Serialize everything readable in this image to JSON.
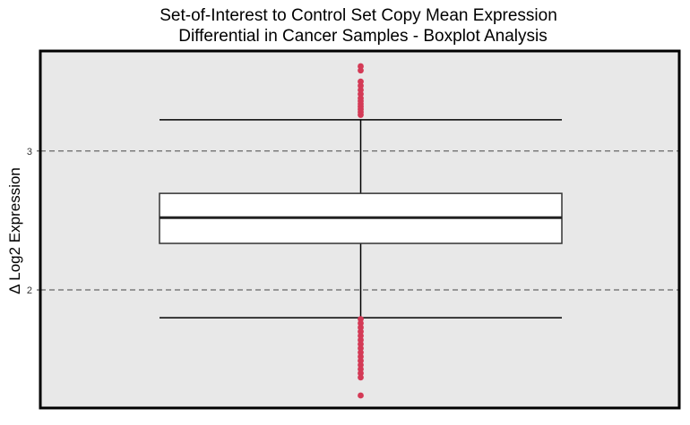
{
  "chart_data": {
    "type": "boxplot",
    "title_lines": [
      "Set-of-Interest to Control Set Copy Mean Expression",
      "Differential in Cancer Samples - Boxplot Analysis"
    ],
    "xlabel": "",
    "ylabel": "Δ Log2 Expression",
    "ylim": [
      1.15,
      3.72
    ],
    "yticks": [
      2,
      3
    ],
    "ytick_labels": [
      "2",
      "3"
    ],
    "grid": "dashed horizontal lines at y ticks",
    "box": {
      "whisker_low": 1.8,
      "q1": 2.335,
      "median": 2.52,
      "q3": 2.695,
      "whisker_high": 3.225
    },
    "outliers_high": [
      3.26,
      3.28,
      3.3,
      3.32,
      3.34,
      3.36,
      3.38,
      3.41,
      3.44,
      3.47,
      3.5,
      3.58,
      3.61
    ],
    "outliers_low": [
      1.24,
      1.37,
      1.4,
      1.43,
      1.46,
      1.49,
      1.52,
      1.55,
      1.58,
      1.61,
      1.64,
      1.67,
      1.7,
      1.73,
      1.76,
      1.79
    ],
    "colors": {
      "panel_background": "#e8e8e8",
      "panel_border": "#000000",
      "box_fill": "#ffffff",
      "box_line": "#333333",
      "outlier": "#d43a56",
      "grid": "#666666"
    }
  }
}
